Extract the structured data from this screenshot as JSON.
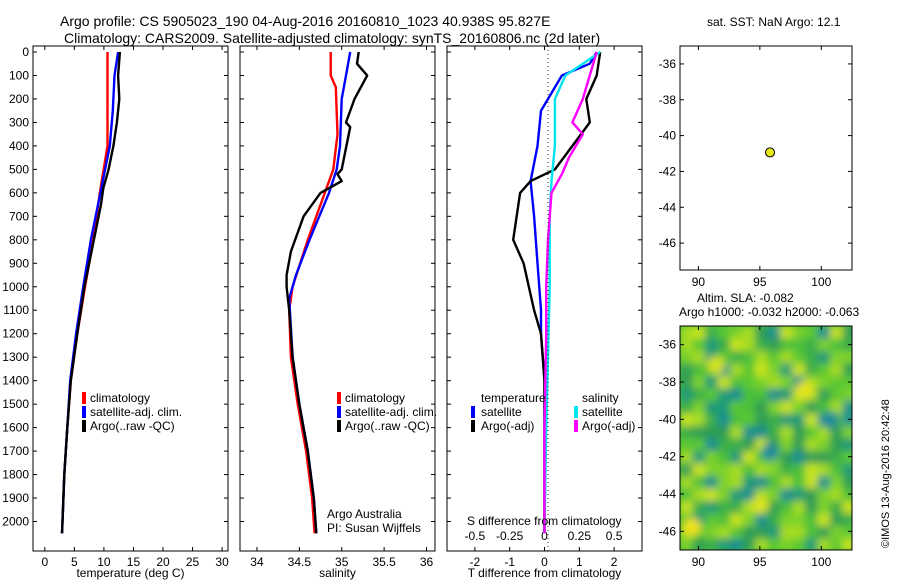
{
  "title_line1": "Argo profile: CS 5905023_190 04-Aug-2016 20160810_1023 40.938S 95.827E",
  "title_line2": "Climatology: CARS2009. Satellite-adjusted climatology: synTS_20160806.nc (2d later)",
  "watermark": "©IMOS 13-Aug-2016 20:42:48",
  "colors": {
    "climatology": "#ff0000",
    "satellite": "#0000ff",
    "argo": "#000000",
    "satellite_salinity": "#00e5ee",
    "argo_salinity": "#ff00ff",
    "marker": "#e6e619"
  },
  "chart_data": [
    {
      "type": "line",
      "panel": "temperature",
      "xlabel": "temperature (deg C)",
      "ylabel": "",
      "xlim": [
        -2,
        31
      ],
      "ylim": [
        2100,
        0
      ],
      "x_ticks": [
        "0",
        "5",
        "10",
        "15",
        "20",
        "25",
        "30"
      ],
      "y_ticks": [
        "0",
        "100",
        "200",
        "300",
        "400",
        "500",
        "600",
        "700",
        "800",
        "900",
        "1000",
        "1100",
        "1200",
        "1300",
        "1400",
        "1500",
        "1600",
        "1700",
        "1800",
        "1900",
        "2000"
      ],
      "legend": [
        "climatology",
        "satellite-adj. clim.",
        "Argo(..raw -QC)"
      ],
      "legend_position": "lower-right",
      "series": [
        {
          "name": "climatology",
          "color": "#ff0000",
          "points": [
            [
              10.6,
              0
            ],
            [
              10.6,
              100
            ],
            [
              10.6,
              250
            ],
            [
              10.6,
              400
            ],
            [
              9.3,
              600
            ],
            [
              8.2,
              800
            ],
            [
              6.8,
              1000
            ],
            [
              5.5,
              1200
            ],
            [
              4.4,
              1400
            ],
            [
              3.8,
              1600
            ],
            [
              3.3,
              1800
            ],
            [
              3.0,
              2000
            ],
            [
              2.9,
              2050
            ]
          ]
        },
        {
          "name": "satellite-adj. clim.",
          "color": "#0000ff",
          "points": [
            [
              12.4,
              0
            ],
            [
              11.8,
              100
            ],
            [
              11.5,
              250
            ],
            [
              11.0,
              400
            ],
            [
              9.4,
              600
            ],
            [
              7.8,
              800
            ],
            [
              6.5,
              1000
            ],
            [
              5.3,
              1200
            ],
            [
              4.3,
              1400
            ],
            [
              3.8,
              1600
            ],
            [
              3.3,
              1800
            ],
            [
              3.0,
              2000
            ],
            [
              2.9,
              2050
            ]
          ]
        },
        {
          "name": "Argo(..raw -QC)",
          "color": "#000000",
          "points": [
            [
              12.7,
              0
            ],
            [
              12.4,
              100
            ],
            [
              12.6,
              200
            ],
            [
              12.2,
              300
            ],
            [
              11.6,
              400
            ],
            [
              10.8,
              500
            ],
            [
              9.9,
              580
            ],
            [
              9.5,
              650
            ],
            [
              8.3,
              800
            ],
            [
              6.7,
              1000
            ],
            [
              5.5,
              1200
            ],
            [
              4.4,
              1400
            ],
            [
              3.8,
              1600
            ],
            [
              3.3,
              1800
            ],
            [
              3.0,
              2000
            ],
            [
              2.9,
              2050
            ]
          ]
        }
      ]
    },
    {
      "type": "line",
      "panel": "salinity",
      "xlabel": "salinity",
      "ylabel": "",
      "xlim": [
        33.8,
        36.1
      ],
      "ylim": [
        2100,
        0
      ],
      "x_ticks": [
        "34",
        "34.5",
        "35",
        "35.5",
        "36"
      ],
      "legend": [
        "climatology",
        "satellite-adj. clim.",
        "Argo(..raw -QC)"
      ],
      "legend_position": "lower-right",
      "annotations": [
        "Argo Australia",
        "PI: Susan Wijffels"
      ],
      "series": [
        {
          "name": "climatology",
          "color": "#ff0000",
          "points": [
            [
              34.87,
              0
            ],
            [
              34.87,
              100
            ],
            [
              34.93,
              150
            ],
            [
              34.95,
              350
            ],
            [
              34.9,
              500
            ],
            [
              34.8,
              600
            ],
            [
              34.6,
              800
            ],
            [
              34.42,
              1000
            ],
            [
              34.38,
              1100
            ],
            [
              34.4,
              1300
            ],
            [
              34.48,
              1500
            ],
            [
              34.58,
              1700
            ],
            [
              34.65,
              1900
            ],
            [
              34.68,
              2050
            ]
          ]
        },
        {
          "name": "satellite-adj. clim.",
          "color": "#0000ff",
          "points": [
            [
              35.1,
              0
            ],
            [
              35.05,
              100
            ],
            [
              35.0,
              200
            ],
            [
              34.98,
              400
            ],
            [
              34.94,
              500
            ],
            [
              34.85,
              600
            ],
            [
              34.62,
              800
            ],
            [
              34.46,
              950
            ],
            [
              34.38,
              1050
            ],
            [
              34.42,
              1300
            ],
            [
              34.5,
              1500
            ],
            [
              34.6,
              1700
            ],
            [
              34.67,
              1900
            ],
            [
              34.7,
              2050
            ]
          ]
        },
        {
          "name": "Argo(..raw -QC)",
          "color": "#000000",
          "points": [
            [
              35.2,
              0
            ],
            [
              35.18,
              50
            ],
            [
              35.3,
              100
            ],
            [
              35.15,
              200
            ],
            [
              35.05,
              300
            ],
            [
              35.1,
              320
            ],
            [
              35.0,
              500
            ],
            [
              34.95,
              520
            ],
            [
              35.0,
              550
            ],
            [
              34.75,
              600
            ],
            [
              34.55,
              700
            ],
            [
              34.4,
              850
            ],
            [
              34.35,
              950
            ],
            [
              34.35,
              1000
            ],
            [
              34.38,
              1100
            ],
            [
              34.42,
              1300
            ],
            [
              34.5,
              1500
            ],
            [
              34.6,
              1700
            ],
            [
              34.67,
              1900
            ],
            [
              34.7,
              2050
            ]
          ]
        }
      ]
    },
    {
      "type": "line",
      "panel": "difference",
      "xlabel": "T difference from climatology",
      "x2label": "S difference from climatology",
      "xlim": [
        -2.8,
        2.8
      ],
      "ylim": [
        2100,
        0
      ],
      "x_ticks": [
        "-2",
        "-1",
        "0",
        "1",
        "2"
      ],
      "x2_ticks": [
        "-0.5",
        "-0.25",
        "0",
        "0.25",
        "0.5"
      ],
      "legend_groups": [
        "temperature",
        "salinity"
      ],
      "legend": [
        "satellite",
        "Argo(-adj)",
        "satellite",
        "Argo(-adj)"
      ],
      "legend_position": "lower-right",
      "series": [
        {
          "name": "satellite",
          "group": "temperature",
          "color": "#0000ff",
          "points": [
            [
              1.5,
              0
            ],
            [
              1.3,
              50
            ],
            [
              0.5,
              100
            ],
            [
              -0.1,
              250
            ],
            [
              -0.2,
              400
            ],
            [
              -0.4,
              550
            ],
            [
              -0.3,
              700
            ],
            [
              -0.2,
              900
            ],
            [
              -0.1,
              1100
            ],
            [
              -0.1,
              1200
            ],
            [
              0,
              1400
            ],
            [
              0,
              1600
            ],
            [
              0,
              2050
            ]
          ]
        },
        {
          "name": "Argo(-adj)",
          "group": "temperature",
          "color": "#000000",
          "points": [
            [
              1.6,
              0
            ],
            [
              1.5,
              100
            ],
            [
              1.2,
              200
            ],
            [
              1.3,
              300
            ],
            [
              0.8,
              400
            ],
            [
              0.3,
              500
            ],
            [
              -0.4,
              550
            ],
            [
              -0.7,
              600
            ],
            [
              -0.9,
              800
            ],
            [
              -0.6,
              900
            ],
            [
              -0.3,
              1100
            ],
            [
              -0.1,
              1200
            ],
            [
              0,
              1400
            ],
            [
              0,
              1600
            ],
            [
              0,
              2050
            ]
          ]
        },
        {
          "name": "satellite",
          "group": "salinity",
          "color": "#00e5ee",
          "points": [
            [
              1.6,
              0
            ],
            [
              0.6,
              100
            ],
            [
              0.3,
              200
            ],
            [
              0.3,
              400
            ],
            [
              0.2,
              550
            ],
            [
              0.15,
              700
            ],
            [
              0.15,
              1000
            ],
            [
              0.1,
              1300
            ],
            [
              0.05,
              1600
            ],
            [
              0,
              2050
            ]
          ]
        },
        {
          "name": "Argo(-adj)",
          "group": "salinity",
          "color": "#ff00ff",
          "points": [
            [
              1.5,
              0
            ],
            [
              1.1,
              200
            ],
            [
              0.8,
              300
            ],
            [
              1.1,
              350
            ],
            [
              0.7,
              450
            ],
            [
              0.5,
              520
            ],
            [
              0.2,
              600
            ],
            [
              0.1,
              800
            ],
            [
              0.05,
              1000
            ],
            [
              0.05,
              1200
            ],
            [
              0,
              1600
            ],
            [
              0,
              2050
            ]
          ]
        }
      ]
    },
    {
      "type": "scatter",
      "panel": "position",
      "title": "sat. SST: NaN Argo: 12.1",
      "xlim": [
        88.5,
        102.5
      ],
      "ylim": [
        -47.5,
        -35
      ],
      "x_ticks": [
        "90",
        "95",
        "100"
      ],
      "y_ticks": [
        "-36",
        "-38",
        "-40",
        "-42",
        "-44",
        "-46"
      ],
      "points": [
        [
          95.827,
          -40.938
        ]
      ]
    },
    {
      "type": "heatmap",
      "panel": "altimetry",
      "title_line1": "Altim. SLA: -0.082",
      "title_line2": "Argo h1000: -0.032 h2000: -0.063",
      "xlim": [
        88.5,
        102.5
      ],
      "ylim": [
        -47,
        -35
      ],
      "x_ticks": [
        "90",
        "95",
        "100"
      ],
      "y_ticks": [
        "-36",
        "-38",
        "-40",
        "-42",
        "-44",
        "-46"
      ]
    }
  ]
}
